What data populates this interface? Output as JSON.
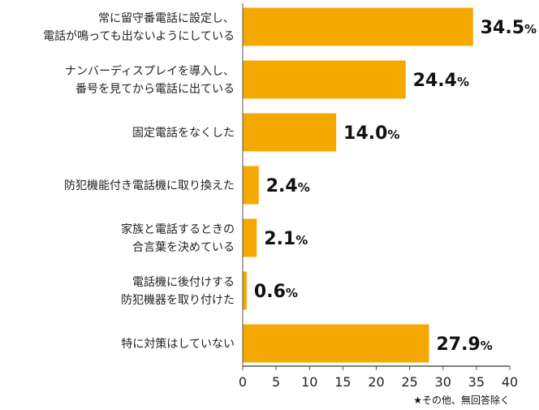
{
  "chart_data": {
    "type": "bar",
    "orientation": "horizontal",
    "categories": [
      [
        "常に留守番電話に設定し、",
        "電話が鳴っても出ないようにしている"
      ],
      [
        "ナンバーディスプレイを導入し、",
        "番号を見てから電話に出ている"
      ],
      [
        "固定電話をなくした"
      ],
      [
        "防犯機能付き電話機に取り換えた"
      ],
      [
        "家族と電話するときの",
        "合言葉を決めている"
      ],
      [
        "電話機に後付けする",
        "防犯機器を取り付けた"
      ],
      [
        "特に対策はしていない"
      ]
    ],
    "values": [
      34.5,
      24.4,
      14.0,
      2.4,
      2.1,
      0.6,
      27.9
    ],
    "value_labels": [
      "34.5",
      "24.4",
      "14.0",
      "2.4",
      "2.1",
      "0.6",
      "27.9"
    ],
    "unit": "%",
    "xlim": [
      0,
      40
    ],
    "xticks": [
      0,
      5,
      10,
      15,
      20,
      25,
      30,
      35,
      40
    ],
    "grid": false,
    "bar_color": "#F5A800",
    "axis_color": "#555555",
    "footnote": "★その他、無回答除く"
  }
}
